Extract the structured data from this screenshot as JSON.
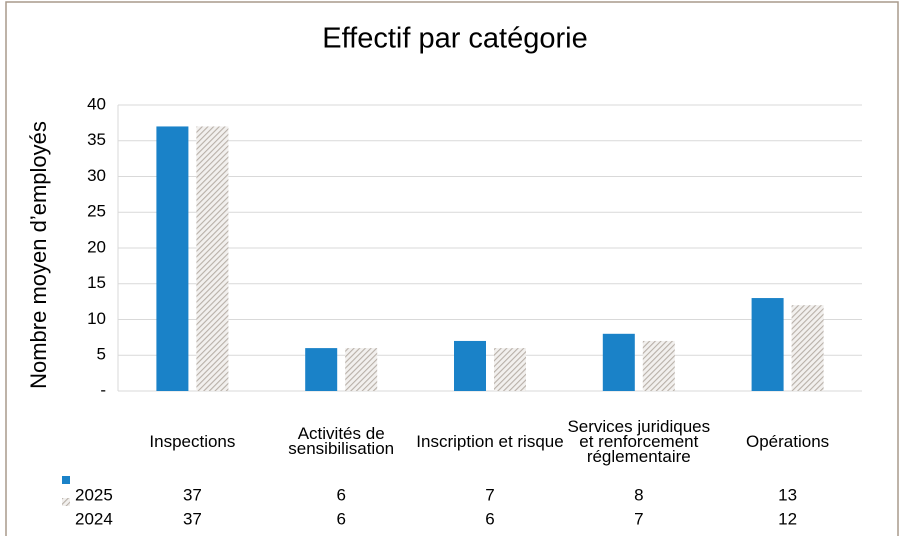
{
  "chart_data": {
    "type": "bar",
    "title": "Effectif par catégorie",
    "y_label": "Nombre moyen d’employés",
    "categories": [
      "Inspections",
      "Activités de sensibilisation",
      "Inscription et risque",
      "Services juridiques et renforcement réglementaire",
      "Opérations"
    ],
    "series": [
      {
        "name": "2025",
        "color": "#1a82c8",
        "values": [
          37,
          6,
          7,
          8,
          13
        ]
      },
      {
        "name": "2024",
        "color": "#b8b0a8",
        "pattern": "hatch",
        "values": [
          37,
          6,
          6,
          7,
          12
        ]
      }
    ],
    "ylim": [
      0,
      40
    ],
    "yticks": [
      {
        "value": 0,
        "label": "-"
      },
      5,
      10,
      15,
      20,
      25,
      30,
      35,
      40
    ],
    "grid": true,
    "data_table": true
  }
}
